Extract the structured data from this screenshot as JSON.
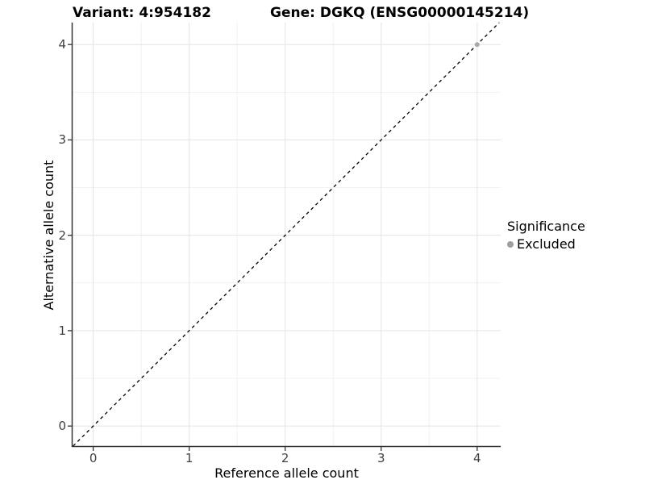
{
  "chart_data": {
    "type": "scatter",
    "titles": {
      "variant": "Variant: 4:954182",
      "gene": "Gene: DGKQ (ENSG00000145214)"
    },
    "xlabel": "Reference allele count",
    "ylabel": "Alternative allele count",
    "x_ticks": [
      0,
      1,
      2,
      3,
      4
    ],
    "y_ticks": [
      0,
      1,
      2,
      3,
      4
    ],
    "xlim": [
      -0.215,
      4.245
    ],
    "ylim": [
      -0.21,
      4.23
    ],
    "grid": {
      "major": true,
      "minor": true,
      "major_color": "#e4e4e4",
      "minor_color": "#f1f1f1"
    },
    "identity_line": {
      "type": "abline",
      "slope": 1,
      "intercept": 0,
      "style": "dashed",
      "color": "#000000"
    },
    "series": [
      {
        "name": "Excluded",
        "color": "#a9a9a9",
        "points": [
          [
            4,
            4
          ]
        ]
      }
    ],
    "legend": {
      "title": "Significance",
      "position": "right",
      "entries": [
        {
          "label": "Excluded",
          "color": "#9e9e9e"
        }
      ]
    },
    "axis": {
      "line_color": "#333333",
      "tick_color": "#333333",
      "label_color": "#404040"
    }
  }
}
